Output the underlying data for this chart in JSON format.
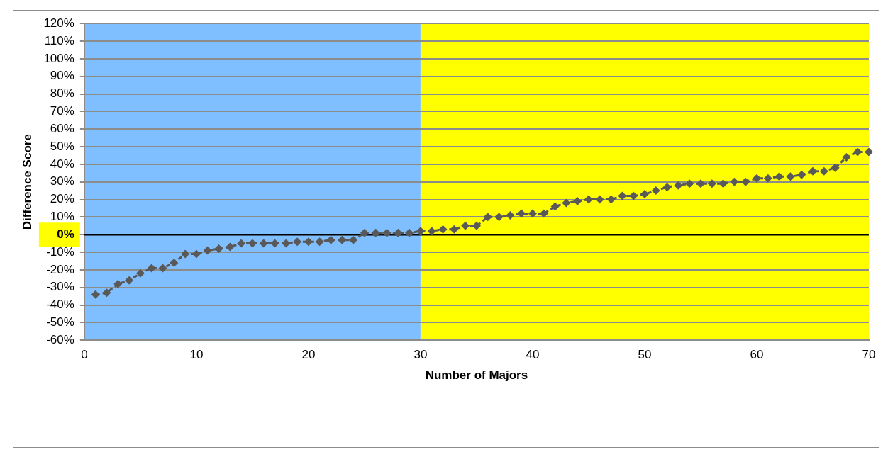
{
  "chart_data": {
    "type": "line",
    "xlabel": "Number of Majors",
    "ylabel": "Difference Score",
    "x": [
      1,
      2,
      3,
      4,
      5,
      6,
      7,
      8,
      9,
      10,
      11,
      12,
      13,
      14,
      15,
      16,
      17,
      18,
      19,
      20,
      21,
      22,
      23,
      24,
      25,
      26,
      27,
      28,
      29,
      30,
      31,
      32,
      33,
      34,
      35,
      36,
      37,
      38,
      39,
      40,
      41,
      42,
      43,
      44,
      45,
      46,
      47,
      48,
      49,
      50,
      51,
      52,
      53,
      54,
      55,
      56,
      57,
      58,
      59,
      60,
      61,
      62,
      63,
      64,
      65,
      66,
      67,
      68,
      69,
      70
    ],
    "series": [
      {
        "color": "#595959",
        "values": [
          -34,
          -33,
          -28,
          -26,
          -22,
          -19,
          -19,
          -16,
          -11,
          -11,
          -9,
          -8,
          -7,
          -5,
          -5,
          -5,
          -5,
          -5,
          -4,
          -4,
          -4,
          -3,
          -3,
          -3,
          1,
          1,
          1,
          1,
          1,
          2,
          2,
          3,
          3,
          5,
          5,
          10,
          10,
          11,
          12,
          12,
          12,
          16,
          18,
          19,
          20,
          20,
          20,
          22,
          22,
          23,
          25,
          27,
          28,
          29,
          29,
          29,
          29,
          30,
          30,
          32,
          32,
          33,
          33,
          34,
          36,
          36,
          38,
          44,
          47,
          47
        ]
      }
    ],
    "xlim": [
      0,
      70
    ],
    "xticks": [
      0,
      10,
      20,
      30,
      40,
      50,
      60,
      70
    ],
    "ylim": [
      -60,
      120
    ],
    "yticks": [
      {
        "value": -60,
        "label": "-60%"
      },
      {
        "value": -50,
        "label": "-50%"
      },
      {
        "value": -40,
        "label": "-40%"
      },
      {
        "value": -30,
        "label": "-30%"
      },
      {
        "value": -20,
        "label": "-20%"
      },
      {
        "value": -10,
        "label": "-10%"
      },
      {
        "value": 0,
        "label": "0%"
      },
      {
        "value": 10,
        "label": "10%"
      },
      {
        "value": 20,
        "label": "20%"
      },
      {
        "value": 30,
        "label": "30%"
      },
      {
        "value": 40,
        "label": "40%"
      },
      {
        "value": 50,
        "label": "50%"
      },
      {
        "value": 60,
        "label": "60%"
      },
      {
        "value": 70,
        "label": "70%"
      },
      {
        "value": 80,
        "label": "80%"
      },
      {
        "value": 90,
        "label": "90%"
      },
      {
        "value": 100,
        "label": "100%"
      },
      {
        "value": 110,
        "label": "110%"
      },
      {
        "value": 120,
        "label": "120%"
      }
    ],
    "bands": [
      {
        "axis": "x",
        "from": 0,
        "to": 30,
        "color": "#80bfff"
      },
      {
        "axis": "x",
        "from": 30,
        "to": 70,
        "color": "#ffff00"
      }
    ],
    "ref_lines": [
      {
        "axis": "y",
        "value": 0,
        "color": "#000000"
      }
    ],
    "grid": "y",
    "legend": false,
    "marker": "diamond",
    "line_style": "dashed"
  }
}
